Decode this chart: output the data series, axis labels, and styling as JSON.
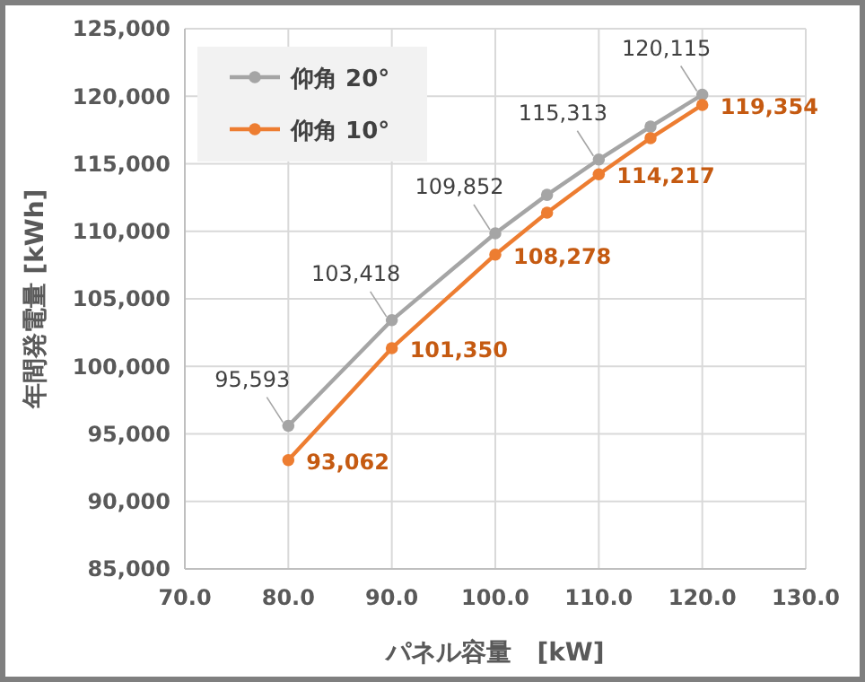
{
  "chart_data": {
    "type": "line",
    "xlabel": "パネル容量　[kW]",
    "ylabel": "年間発電量 [kWh]",
    "x": [
      80,
      90,
      100,
      105,
      110,
      115,
      120
    ],
    "series": [
      {
        "name": "仰角 20°",
        "color": "#a5a5a5",
        "values": [
          95593,
          103418,
          109852,
          112700,
          115313,
          117750,
          120115
        ],
        "value_labels": [
          "95,593",
          "103,418",
          "109,852",
          null,
          "115,313",
          null,
          "120,115"
        ]
      },
      {
        "name": "仰角 10°",
        "color": "#ed7d31",
        "values": [
          93062,
          101350,
          108278,
          111380,
          114217,
          116900,
          119354
        ],
        "value_labels": [
          "93,062",
          "101,350",
          "108,278",
          null,
          "114,217",
          null,
          "119,354"
        ]
      }
    ],
    "xlim": [
      70,
      130
    ],
    "xticks": [
      {
        "value": 70,
        "label": "70.0"
      },
      {
        "value": 80,
        "label": "80.0"
      },
      {
        "value": 90,
        "label": "90.0"
      },
      {
        "value": 100,
        "label": "100.0"
      },
      {
        "value": 110,
        "label": "110.0"
      },
      {
        "value": 120,
        "label": "120.0"
      },
      {
        "value": 130,
        "label": "130.0"
      }
    ],
    "ylim": [
      85000,
      125000
    ],
    "yticks": [
      {
        "value": 85000,
        "label": "85,000"
      },
      {
        "value": 90000,
        "label": "90,000"
      },
      {
        "value": 95000,
        "label": "95,000"
      },
      {
        "value": 100000,
        "label": "100,000"
      },
      {
        "value": 105000,
        "label": "105,000"
      },
      {
        "value": 110000,
        "label": "110,000"
      },
      {
        "value": 115000,
        "label": "115,000"
      },
      {
        "value": 120000,
        "label": "120,000"
      },
      {
        "value": 125000,
        "label": "125,000"
      }
    ],
    "grid": true,
    "legend": "top left",
    "marker": "circle",
    "line_style": "solid"
  }
}
